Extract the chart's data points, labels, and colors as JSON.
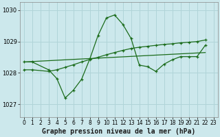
{
  "title": "Graphe pression niveau de la mer (hPa)",
  "background_color": "#cce8ec",
  "grid_color": "#b0d4d8",
  "line_color": "#1a6b1a",
  "x_ticks": [
    0,
    1,
    2,
    3,
    4,
    5,
    6,
    7,
    8,
    9,
    10,
    11,
    12,
    13,
    14,
    15,
    16,
    17,
    18,
    19,
    20,
    21,
    22,
    23
  ],
  "ylim": [
    1026.6,
    1030.25
  ],
  "yticks": [
    1027,
    1028,
    1029,
    1030
  ],
  "line1": {
    "x": [
      0,
      1,
      3,
      4,
      5,
      6,
      7,
      8,
      9,
      10,
      11,
      12,
      13,
      14,
      15,
      16,
      17,
      18,
      19,
      20,
      21,
      22
    ],
    "y": [
      1028.35,
      1028.35,
      1028.1,
      1027.82,
      1027.2,
      1027.45,
      1027.8,
      1028.45,
      1029.2,
      1029.75,
      1029.85,
      1029.55,
      1029.1,
      1028.25,
      1028.2,
      1028.05,
      1028.28,
      1028.42,
      1028.52,
      1028.52,
      1028.52,
      1028.88
    ]
  },
  "line2": {
    "x": [
      0,
      1,
      3,
      4,
      5,
      6,
      7,
      8,
      9,
      10,
      11,
      12,
      13,
      14,
      15,
      16,
      17,
      18,
      19,
      20,
      21,
      22
    ],
    "y": [
      1028.1,
      1028.1,
      1028.05,
      1028.1,
      1028.18,
      1028.26,
      1028.35,
      1028.43,
      1028.5,
      1028.58,
      1028.65,
      1028.72,
      1028.78,
      1028.82,
      1028.85,
      1028.88,
      1028.91,
      1028.93,
      1028.96,
      1028.98,
      1029.0,
      1029.05
    ]
  },
  "line3": {
    "x": [
      0,
      22
    ],
    "y": [
      1028.35,
      1028.65
    ]
  },
  "xlabel_fontsize": 7,
  "tick_fontsize": 5.5,
  "ytick_fontsize": 6
}
